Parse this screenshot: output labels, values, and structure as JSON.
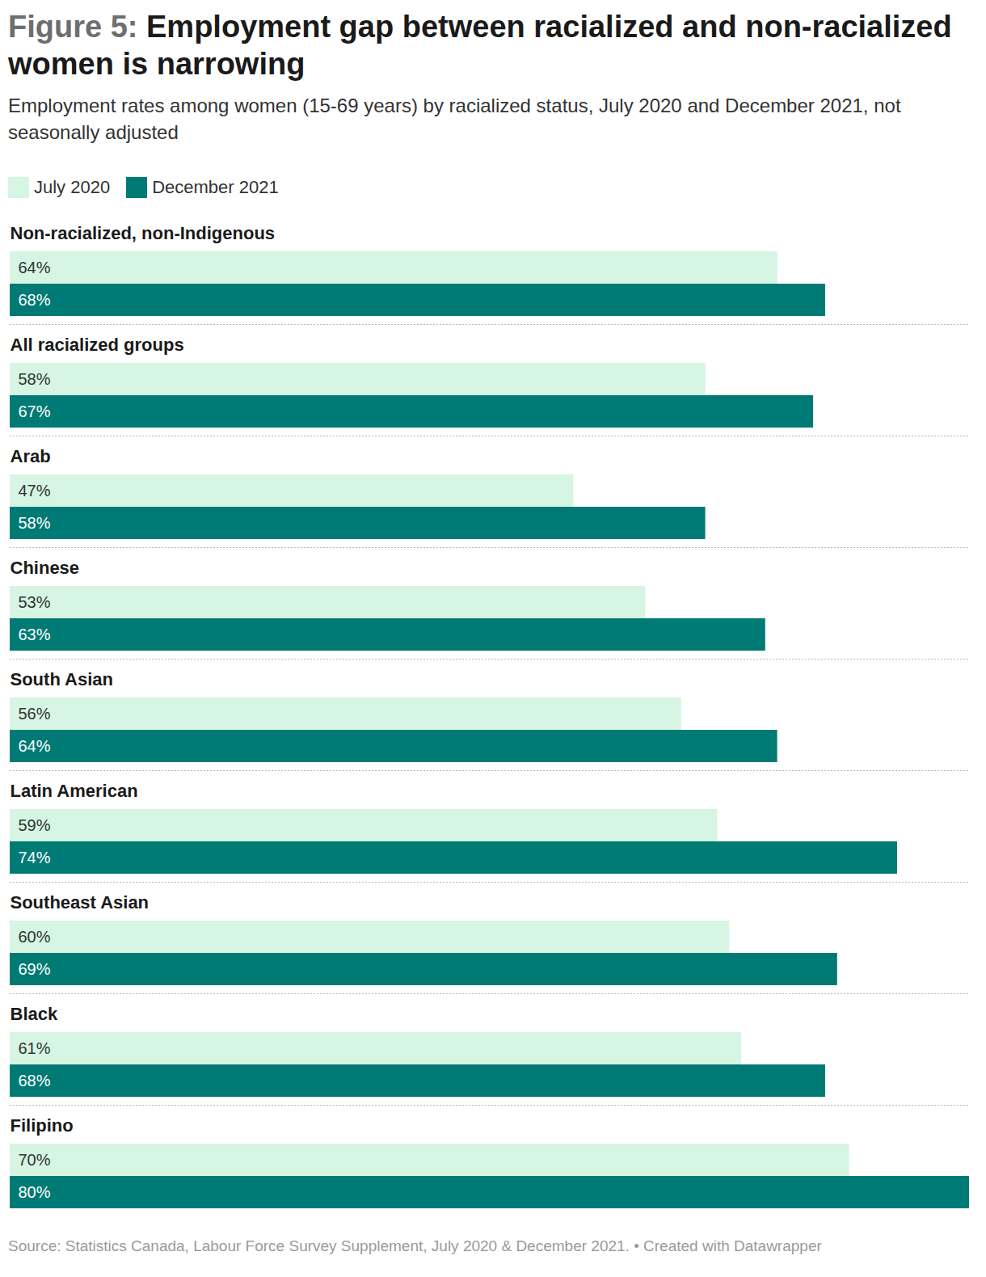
{
  "chart_data": {
    "type": "bar",
    "orientation": "horizontal",
    "title": "Figure 5: Employment gap between racialized and non-racialized women is narrowing",
    "subtitle": "Employment rates among women (15-69 years) by racialized status, July 2020 and December 2021, not seasonally adjusted",
    "caption": "Source: Statistics Canada, Labour Force Survey Supplement, July 2020 & December 2021. • Created with Datawrapper",
    "categories": [
      "Non-racialized, non-Indigenous",
      "All racialized groups",
      "Arab",
      "Chinese",
      "South Asian",
      "Latin American",
      "Southeast Asian",
      "Black",
      "Filipino"
    ],
    "series": [
      {
        "name": "July 2020",
        "color": "#d6f5e3",
        "values": [
          64,
          58,
          47,
          53,
          56,
          59,
          60,
          61,
          70
        ],
        "value_labels": [
          "64%",
          "58%",
          "47%",
          "53%",
          "56%",
          "59%",
          "60%",
          "61%",
          "70%"
        ]
      },
      {
        "name": "December 2021",
        "color": "#007a75",
        "values": [
          68,
          67,
          58,
          63,
          64,
          74,
          69,
          68,
          80
        ],
        "value_labels": [
          "68%",
          "67%",
          "58%",
          "63%",
          "64%",
          "74%",
          "69%",
          "68%",
          "80%"
        ]
      }
    ],
    "xlim": [
      0,
      80
    ],
    "data_labels": true,
    "tick_labels": false
  }
}
